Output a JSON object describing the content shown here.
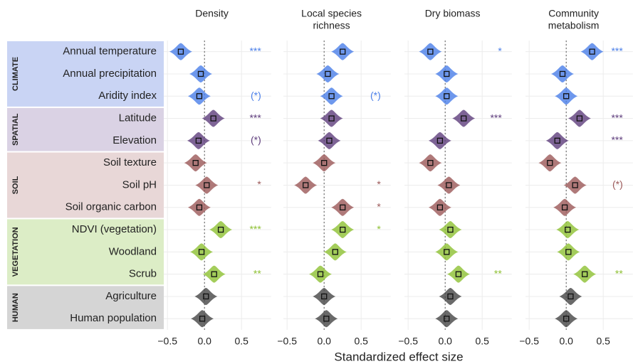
{
  "chart_data": {
    "type": "violin",
    "xlabel": "Standardized effect size",
    "groups": [
      {
        "name": "CLIMATE",
        "color": "#c9d4f4",
        "mark_color": "#4a7ee8",
        "categories": [
          "Annual temperature",
          "Annual precipitation",
          "Aridity index"
        ]
      },
      {
        "name": "SPATIAL",
        "color": "#dad2e4",
        "mark_color": "#5e3d7c",
        "categories": [
          "Latitude",
          "Elevation"
        ]
      },
      {
        "name": "SOIL",
        "color": "#e8d7d7",
        "mark_color": "#9b5858",
        "categories": [
          "Soil texture",
          "Soil pH",
          "Soil organic carbon"
        ]
      },
      {
        "name": "VEGETATION",
        "color": "#dcedc6",
        "mark_color": "#8dc032",
        "categories": [
          "NDVI (vegetation)",
          "Woodland",
          "Scrub"
        ]
      },
      {
        "name": "HUMAN",
        "color": "#d5d5d5",
        "mark_color": "#454545",
        "categories": [
          "Agriculture",
          "Human population"
        ]
      }
    ],
    "xlim": [
      -0.55,
      0.9
    ],
    "xticks": [
      {
        "value": -0.5,
        "label": "−0.5"
      },
      {
        "value": 0,
        "label": "0.0"
      },
      {
        "value": 0.5,
        "label": "0.5"
      }
    ],
    "reference_line": 0,
    "grid": true,
    "panels": [
      {
        "title": [
          "Density"
        ],
        "values": [
          -0.32,
          -0.05,
          -0.07,
          0.12,
          -0.08,
          -0.12,
          0.03,
          -0.07,
          0.22,
          -0.04,
          0.13,
          0.02,
          -0.03
        ],
        "significance": [
          "***",
          null,
          "(*)",
          "***",
          "(*)",
          null,
          "*",
          null,
          "***",
          null,
          "**",
          null,
          null
        ]
      },
      {
        "title": [
          "Local species",
          "richness"
        ],
        "values": [
          0.25,
          0.05,
          0.1,
          0.1,
          0.07,
          0.0,
          -0.25,
          0.25,
          0.25,
          0.15,
          -0.05,
          0.0,
          0.03
        ],
        "significance": [
          null,
          null,
          "(*)",
          null,
          null,
          null,
          "*",
          "*",
          "*",
          null,
          null,
          null,
          null
        ]
      },
      {
        "title": [
          "Dry biomass"
        ],
        "values": [
          -0.2,
          0.02,
          0.02,
          0.25,
          -0.07,
          -0.2,
          0.05,
          -0.07,
          0.07,
          0.02,
          0.18,
          0.07,
          0.02
        ],
        "significance": [
          "*",
          null,
          null,
          "***",
          null,
          null,
          null,
          null,
          null,
          null,
          "**",
          null,
          null
        ]
      },
      {
        "title": [
          "Community",
          "metabolism"
        ],
        "values": [
          0.35,
          -0.05,
          0.0,
          0.18,
          -0.12,
          -0.22,
          0.12,
          -0.02,
          0.02,
          0.03,
          0.25,
          0.06,
          0.0
        ],
        "significance": [
          "***",
          null,
          null,
          "***",
          "***",
          null,
          "(*)",
          null,
          null,
          null,
          "**",
          null,
          null
        ]
      }
    ]
  }
}
